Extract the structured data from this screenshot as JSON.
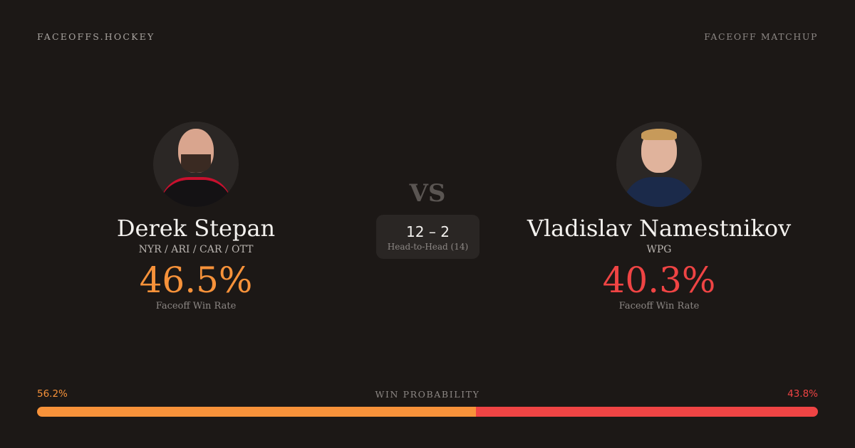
{
  "header": {
    "brand": "FACEOFFS.HOCKEY",
    "tag": "FACEOFF MATCHUP"
  },
  "vs": "VS",
  "players": [
    {
      "name": "Derek Stepan",
      "teams": "NYR / ARI / CAR / OTT",
      "win_rate": "46.5%",
      "win_rate_label": "Faceoff Win Rate",
      "color": "#f7923a"
    },
    {
      "name": "Vladislav Namestnikov",
      "teams": "WPG",
      "win_rate": "40.3%",
      "win_rate_label": "Faceoff Win Rate",
      "color": "#ef4444"
    }
  ],
  "head_to_head": {
    "score": "12 – 2",
    "label": "Head-to-Head (14)"
  },
  "win_probability": {
    "label": "WIN PROBABILITY",
    "left": "56.2%",
    "right": "43.8%",
    "left_value": 56.2,
    "right_value": 43.8
  }
}
